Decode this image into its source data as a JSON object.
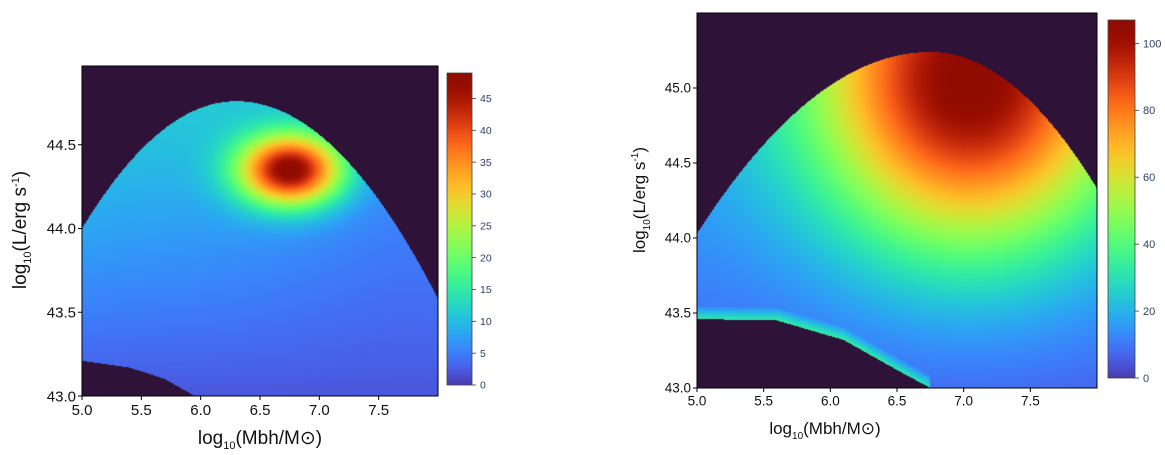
{
  "chart_data": [
    {
      "type": "heatmap",
      "xlabel": "log10(Mbh/M⊙)",
      "ylabel": "log10(L/erg s-1)",
      "x_ticks": [
        5.0,
        5.5,
        6.0,
        6.5,
        7.0,
        7.5
      ],
      "x_tick_labels": [
        "5.0",
        "5.5",
        "6.0",
        "6.5",
        "7.0",
        "7.5"
      ],
      "y_ticks": [
        43.0,
        43.5,
        44.0,
        44.5
      ],
      "y_tick_labels": [
        "43.0",
        "43.5",
        "44.0",
        "44.5"
      ],
      "xlim": [
        5.0,
        8.0
      ],
      "ylim": [
        43.0,
        44.97
      ],
      "colorbar": {
        "range": [
          0,
          49
        ],
        "ticks": [
          0,
          5,
          10,
          15,
          20,
          25,
          30,
          35,
          40,
          45
        ],
        "tick_labels": [
          "0",
          "5",
          "10",
          "15",
          "20",
          "25",
          "30",
          "35",
          "40",
          "45"
        ],
        "colormap": "turbo"
      },
      "background_color": "#2e1238",
      "peak": {
        "x": 6.75,
        "y": 44.35,
        "value": 49
      },
      "upper_boundary": {
        "peak_x": 6.3,
        "peak_y": 44.76,
        "edge_x": 5.0,
        "edge_y": 44.0,
        "right_x": 8.0,
        "right_y": 43.58
      },
      "lower_boundary": {
        "x": [
          5.0,
          5.4,
          5.7,
          5.95
        ],
        "y": [
          43.21,
          43.17,
          43.1,
          43.0
        ]
      }
    },
    {
      "type": "heatmap",
      "xlabel": "log10(Mbh/M⊙)",
      "ylabel": "log10(L/erg s-1)",
      "x_ticks": [
        5.0,
        5.5,
        6.0,
        6.5,
        7.0,
        7.5
      ],
      "x_tick_labels": [
        "5.0",
        "5.5",
        "6.0",
        "6.5",
        "7.0",
        "7.5"
      ],
      "y_ticks": [
        43.0,
        43.5,
        44.0,
        44.5,
        45.0
      ],
      "y_tick_labels": [
        "43.0",
        "43.5",
        "44.0",
        "44.5",
        "45.0"
      ],
      "xlim": [
        5.0,
        8.0
      ],
      "ylim": [
        43.0,
        45.5
      ],
      "colorbar": {
        "range": [
          0,
          107
        ],
        "ticks": [
          0,
          20,
          40,
          60,
          80,
          100
        ],
        "tick_labels": [
          "0",
          "20",
          "40",
          "60",
          "80",
          "100"
        ],
        "colormap": "turbo"
      },
      "background_color": "#2e1238",
      "peak": {
        "x": 7.05,
        "y": 45.05,
        "value": 107
      },
      "upper_boundary": {
        "peak_x": 6.75,
        "peak_y": 45.24,
        "edge_x": 5.0,
        "edge_y": 44.03,
        "right_x": 8.0,
        "right_y": 44.33
      },
      "lower_boundary": {
        "x": [
          5.0,
          5.6,
          6.1,
          6.5,
          6.75
        ],
        "y": [
          43.46,
          43.45,
          43.32,
          43.12,
          43.0
        ]
      }
    }
  ]
}
